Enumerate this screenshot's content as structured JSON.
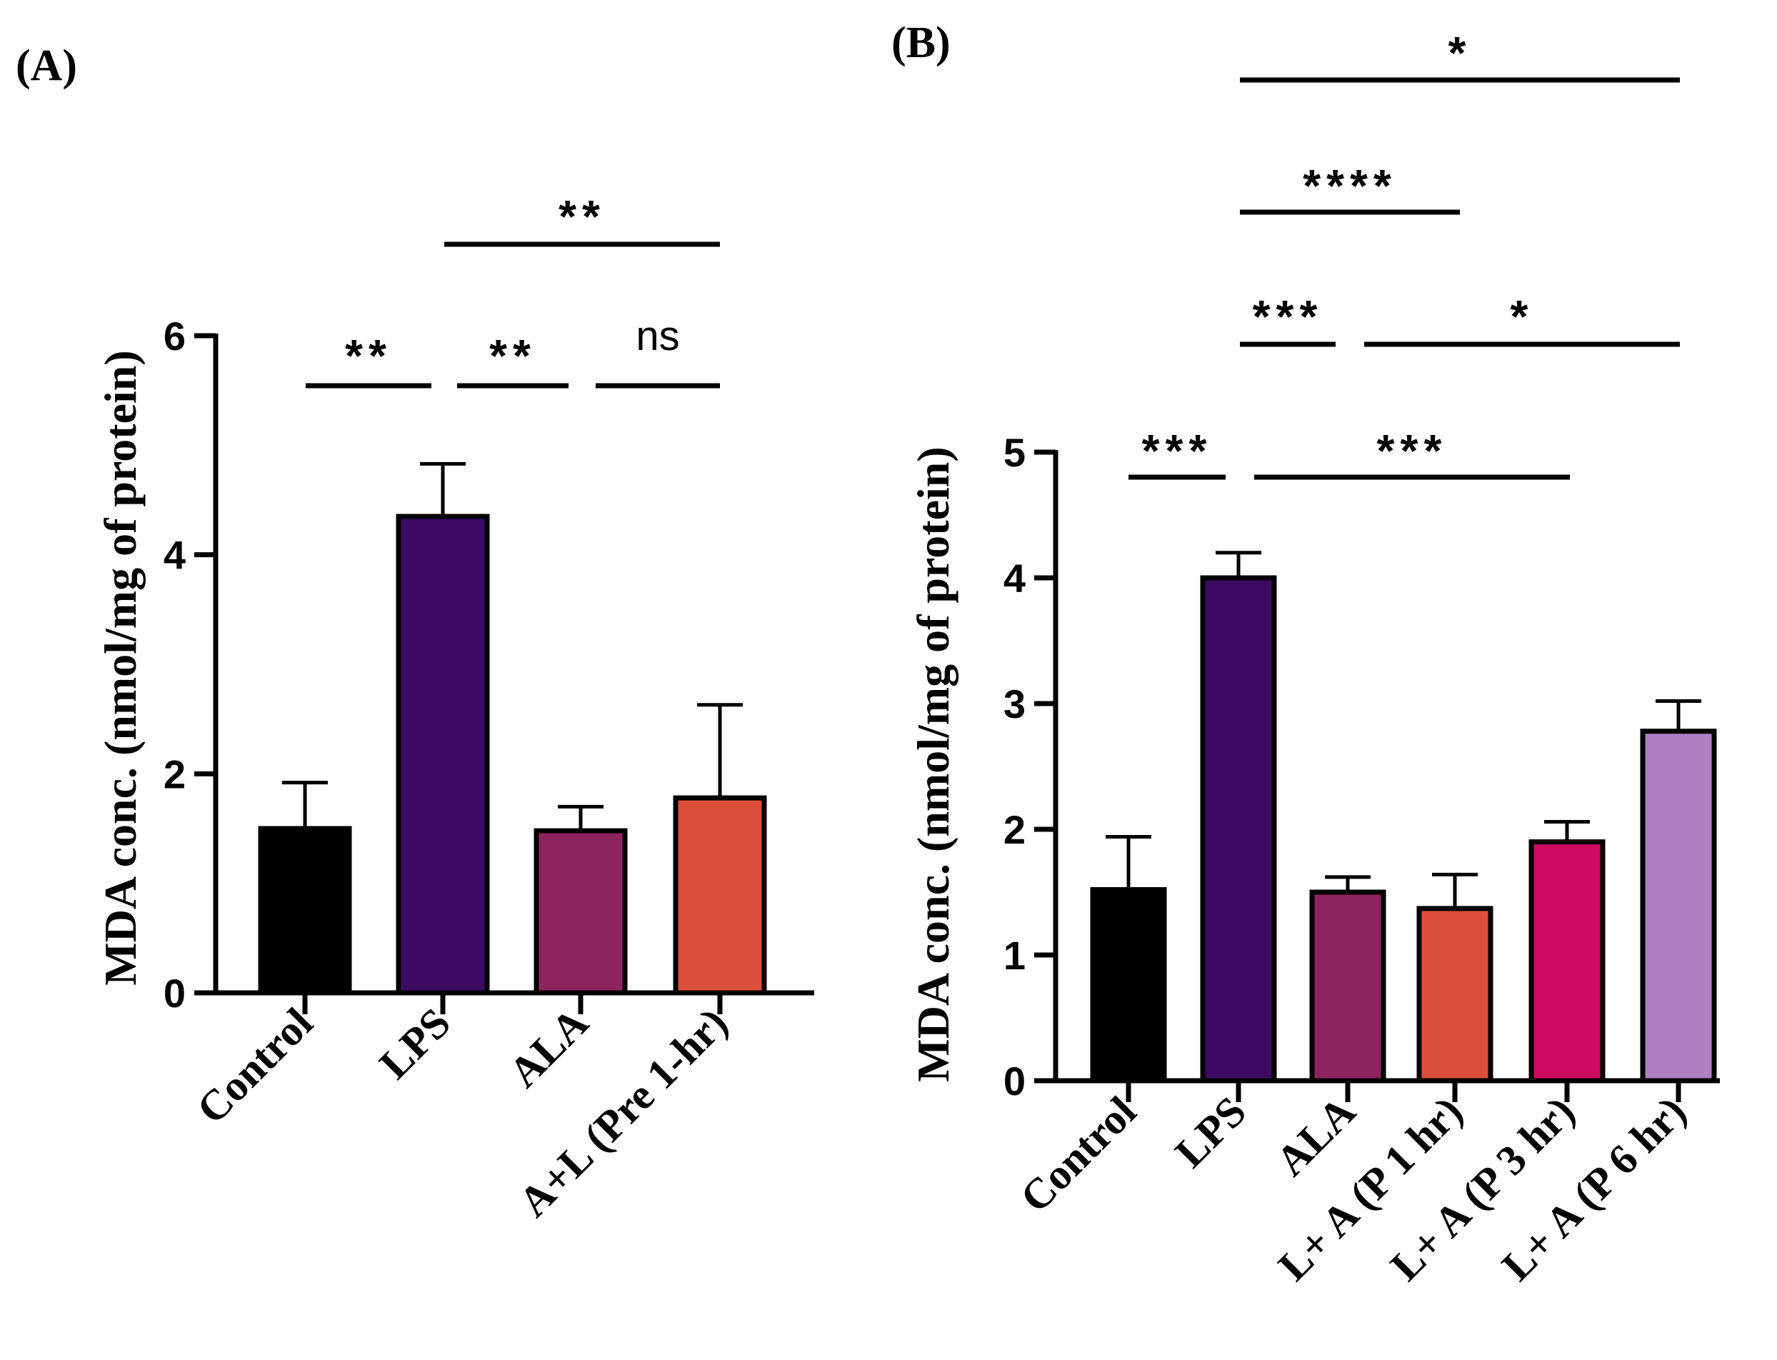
{
  "chart_data": [
    {
      "type": "bar",
      "panel_label": "(A)",
      "ylabel": "MDA conc. (nmol/mg of protein)",
      "ylim": [
        0,
        6
      ],
      "yticks": [
        0,
        2,
        4,
        6
      ],
      "categories": [
        "Control",
        "LPS",
        "ALA",
        "A+L (Pre 1-hr)"
      ],
      "values": [
        1.5,
        4.35,
        1.48,
        1.78
      ],
      "errors": [
        0.42,
        0.48,
        0.22,
        0.85
      ],
      "colors": [
        "#000000",
        "#3d0a63",
        "#8e245f",
        "#dc4f3b"
      ],
      "significance": [
        {
          "from": 0,
          "to": 1,
          "label": "**"
        },
        {
          "from": 1,
          "to": 2,
          "label": "**"
        },
        {
          "from": 2,
          "to": 3,
          "label": "ns"
        },
        {
          "from": 1,
          "to": 3,
          "label": "**"
        }
      ]
    },
    {
      "type": "bar",
      "panel_label": "(B)",
      "ylabel": "MDA conc. (nmol/mg of protein)",
      "ylim": [
        0,
        5
      ],
      "yticks": [
        0,
        1,
        2,
        3,
        4,
        5
      ],
      "categories": [
        "Control",
        "LPS",
        "ALA",
        "L+ A (P 1 hr)",
        "L+ A (P 3 hr)",
        "L+ A (P 6 hr)"
      ],
      "values": [
        1.52,
        4.0,
        1.5,
        1.37,
        1.9,
        2.78
      ],
      "errors": [
        0.42,
        0.2,
        0.12,
        0.27,
        0.16,
        0.24
      ],
      "colors": [
        "#000000",
        "#3d0a63",
        "#8e245f",
        "#dc4f3b",
        "#cd0a62",
        "#b07fc1"
      ],
      "significance": [
        {
          "from": 0,
          "to": 1,
          "label": "***"
        },
        {
          "from": 1,
          "to": 4,
          "label": "***"
        },
        {
          "from": 1,
          "to": 2,
          "label": "***"
        },
        {
          "from": 2,
          "to": 5,
          "label": "*"
        },
        {
          "from": 1,
          "to": 3,
          "label": "****"
        },
        {
          "from": 1,
          "to": 5,
          "label": "*"
        }
      ]
    }
  ]
}
